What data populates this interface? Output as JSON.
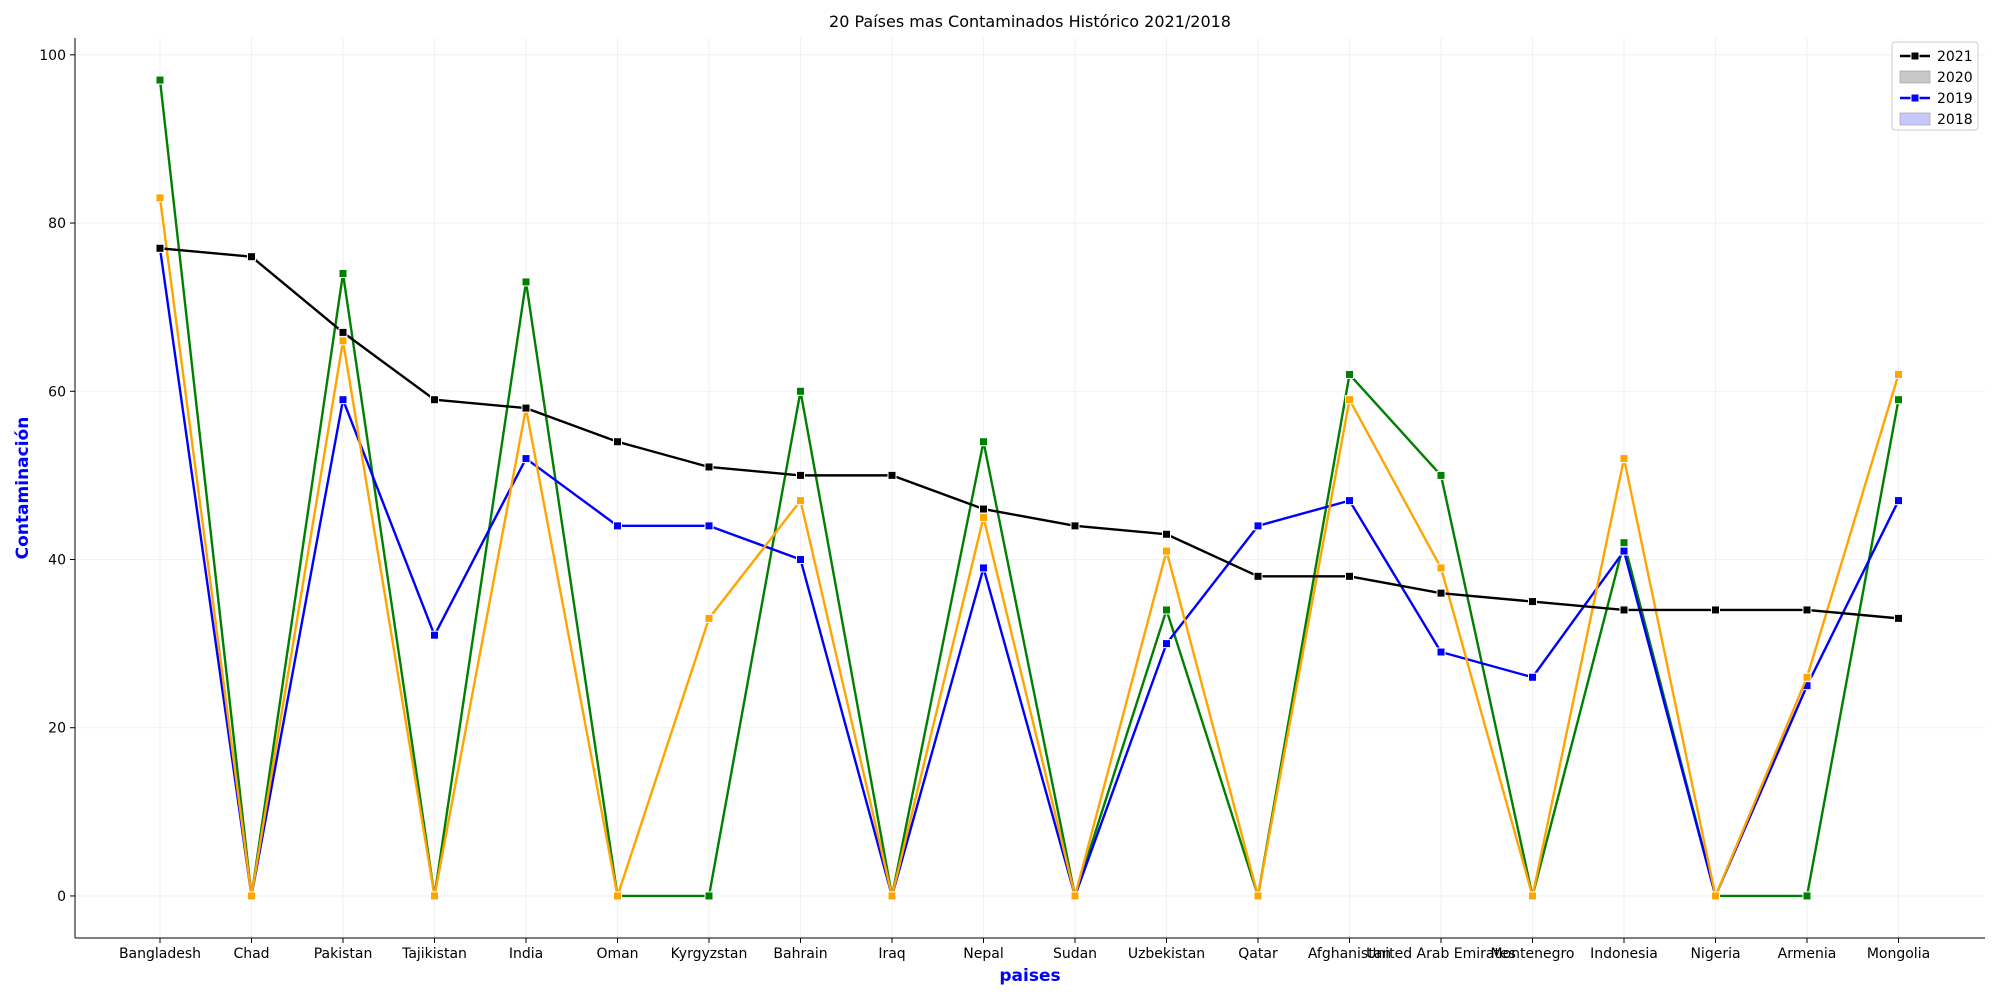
{
  "chart_data": {
    "type": "line",
    "title": "20 Países mas Contaminados Histórico 2021/2018",
    "xlabel": "paises",
    "ylabel": "Contaminación",
    "ylim": [
      -5,
      102
    ],
    "yticks": [
      0,
      20,
      40,
      60,
      80,
      100
    ],
    "grid": true,
    "legend_position": "top-right",
    "categories": [
      "Bangladesh",
      "Chad",
      "Pakistan",
      "Tajikistan",
      "India",
      "Oman",
      "Kyrgyzstan",
      "Bahrain",
      "Iraq",
      "Nepal",
      "Sudan",
      "Uzbekistan",
      "Qatar",
      "Afghanistan",
      "United Arab Emirates",
      "Montenegro",
      "Indonesia",
      "Nigeria",
      "Armenia",
      "Mongolia"
    ],
    "series": [
      {
        "name": "2021",
        "color": "#000000",
        "values": [
          77,
          76,
          67,
          59,
          58,
          54,
          51,
          50,
          50,
          46,
          44,
          43,
          38,
          38,
          36,
          35,
          34,
          34,
          34,
          33
        ]
      },
      {
        "color": "#ffa500",
        "values": [
          83,
          0,
          66,
          0,
          58,
          0,
          33,
          47,
          0,
          45,
          0,
          41,
          0,
          59,
          39,
          0,
          52,
          0,
          26,
          62
        ]
      },
      {
        "name": "2019",
        "color": "#0000ff",
        "values": [
          77,
          0,
          59,
          31,
          52,
          44,
          44,
          40,
          0,
          39,
          0,
          30,
          44,
          47,
          29,
          26,
          41,
          0,
          25,
          47
        ]
      },
      {
        "color": "#008000",
        "values": [
          97,
          0,
          74,
          0,
          73,
          0,
          0,
          60,
          0,
          54,
          0,
          34,
          0,
          62,
          50,
          0,
          42,
          0,
          0,
          59
        ]
      }
    ],
    "legend": [
      {
        "label": "2021",
        "style": "line-marker",
        "color": "#000000"
      },
      {
        "label": "2020",
        "style": "patch",
        "color": "#c8c8c8"
      },
      {
        "label": "2019",
        "style": "line-marker",
        "color": "#0000ff"
      },
      {
        "label": "2018",
        "style": "patch",
        "color": "#c8c8ff"
      }
    ]
  }
}
